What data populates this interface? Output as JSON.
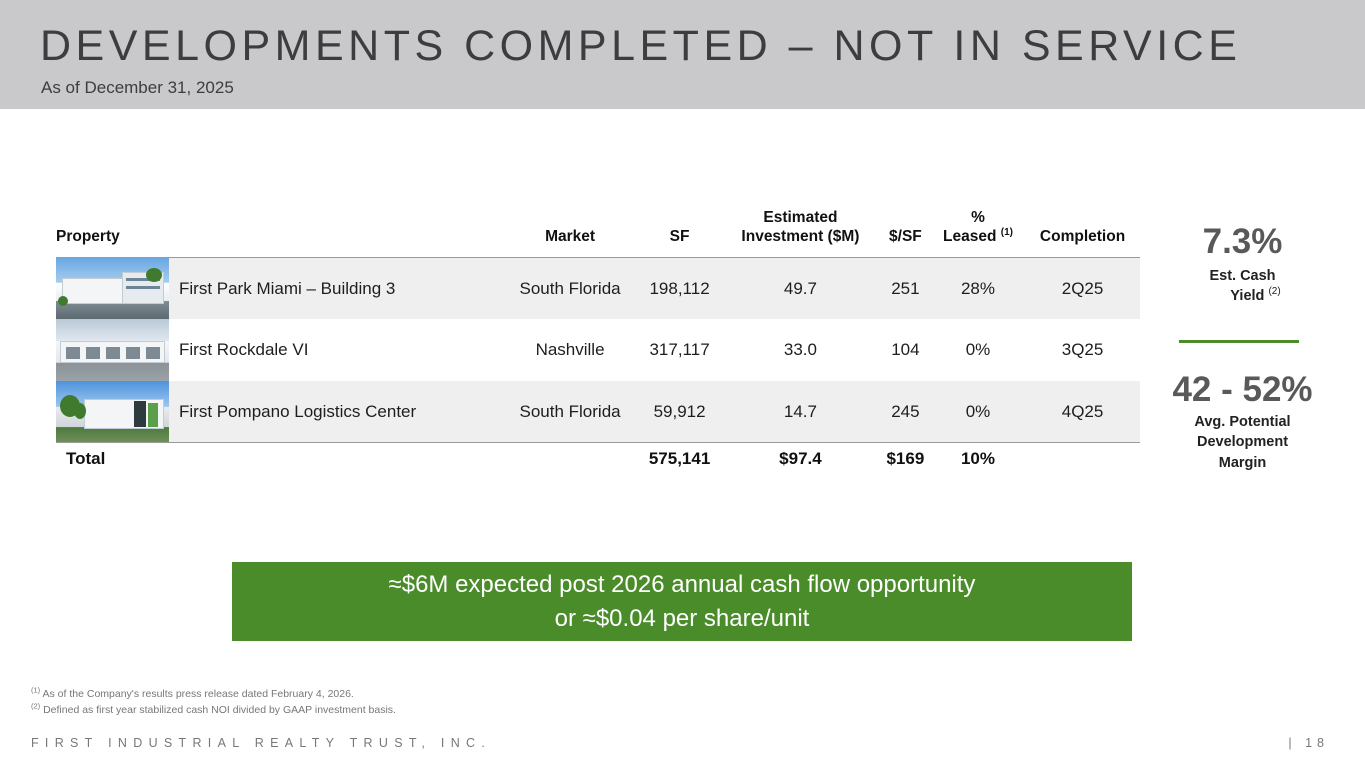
{
  "header": {
    "title": "DEVELOPMENTS COMPLETED – NOT IN SERVICE",
    "subtitle": "As of December 31, 2025"
  },
  "table": {
    "columns": {
      "property": "Property",
      "market": "Market",
      "sf": "SF",
      "investment_line1": "Estimated",
      "investment_line2": "Investment ($M)",
      "price_per_sf": "$/SF",
      "leased_line1": "%",
      "leased_line2": "Leased",
      "leased_footnote": "(1)",
      "completion": "Completion"
    },
    "rows": [
      {
        "name": "First Park Miami – Building 3",
        "market": "South Florida",
        "sf": "198,112",
        "investment": "49.7",
        "price_per_sf": "251",
        "leased": "28%",
        "completion": "2Q25"
      },
      {
        "name": "First Rockdale VI",
        "market": "Nashville",
        "sf": "317,117",
        "investment": "33.0",
        "price_per_sf": "104",
        "leased": "0%",
        "completion": "3Q25"
      },
      {
        "name": "First Pompano Logistics Center",
        "market": "South Florida",
        "sf": "59,912",
        "investment": "14.7",
        "price_per_sf": "245",
        "leased": "0%",
        "completion": "4Q25"
      }
    ],
    "total": {
      "label": "Total",
      "sf": "575,141",
      "investment": "$97.4",
      "price_per_sf": "$169",
      "leased": "10%"
    }
  },
  "sidebar": {
    "yield_value": "7.3%",
    "yield_label_line1": "Est. Cash",
    "yield_label_line2": "Yield",
    "yield_footnote": "(2)",
    "margin_value": "42 - 52%",
    "margin_label_line1": "Avg. Potential",
    "margin_label_line2": "Development",
    "margin_label_line3": "Margin"
  },
  "callout": {
    "line1": "≈$6M expected post 2026 annual cash flow opportunity",
    "line2": "or ≈$0.04 per share/unit"
  },
  "footnotes": [
    {
      "mark": "(1)",
      "text": "As of the Company's results press release dated February 4, 2026."
    },
    {
      "mark": "(2)",
      "text": "Defined as first year stabilized cash NOI divided by GAAP investment basis."
    }
  ],
  "footer": {
    "company": "FIRST INDUSTRIAL REALTY TRUST, INC.",
    "separator": "|",
    "page_number": "18"
  },
  "colors": {
    "header_bg": "#c9c9cb",
    "accent_green": "#4a8c2a",
    "row_shade": "#efefef"
  }
}
